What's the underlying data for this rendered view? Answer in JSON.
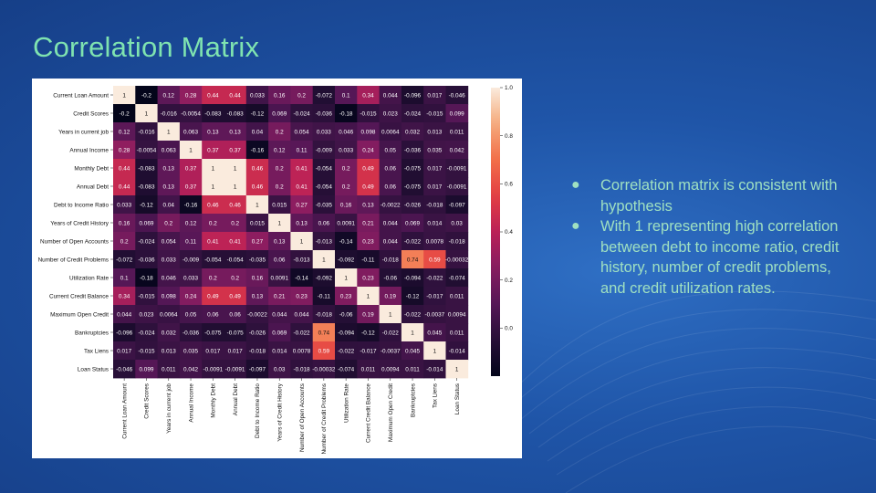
{
  "slide": {
    "title": "Correlation Matrix",
    "bullets": [
      "Correlation matrix is consistent with hypothesis",
      "With 1 representing high correlation between debt to income ratio, credit history, number of credit problems, and credit utilization rates."
    ],
    "bullet_icon": "bullet-dot",
    "title_color": "#7fe3b0",
    "text_color": "#9fe0c1",
    "background_color": "#1f55a8"
  },
  "chart_data": {
    "type": "heatmap",
    "title": "",
    "xlabel": "",
    "ylabel": "",
    "variables": [
      "Current Loan Amount",
      "Credit Scores",
      "Years in current job",
      "Annual Income",
      "Monthly Debt",
      "Annual Debt",
      "Debt to Income Ratio",
      "Years of Credit History",
      "Number of Open Accounts",
      "Number of Credit Problems",
      "Utilization Rate",
      "Current Credit Balance",
      "Maximum Open Credit",
      "Bankruptcies",
      "Tax Liens",
      "Loan Status"
    ],
    "matrix": [
      [
        1,
        -0.2,
        0.12,
        0.28,
        0.44,
        0.44,
        0.033,
        0.16,
        0.2,
        -0.072,
        0.1,
        0.34,
        0.044,
        -0.096,
        0.017,
        -0.046
      ],
      [
        -0.2,
        1,
        -0.016,
        -0.0054,
        -0.083,
        -0.083,
        -0.12,
        0.069,
        -0.024,
        -0.036,
        -0.18,
        -0.015,
        0.023,
        -0.024,
        -0.015,
        0.099
      ],
      [
        0.12,
        -0.016,
        1,
        0.063,
        0.13,
        0.13,
        0.04,
        0.2,
        0.054,
        0.033,
        0.046,
        0.098,
        0.0064,
        0.032,
        0.013,
        0.011
      ],
      [
        0.28,
        -0.0054,
        0.063,
        1,
        0.37,
        0.37,
        -0.16,
        0.12,
        0.11,
        -0.009,
        0.033,
        0.24,
        0.05,
        -0.036,
        0.035,
        0.042
      ],
      [
        0.44,
        -0.083,
        0.13,
        0.37,
        1,
        1,
        0.46,
        0.2,
        0.41,
        -0.054,
        0.2,
        0.49,
        0.06,
        -0.075,
        0.017,
        -0.0091
      ],
      [
        0.44,
        -0.083,
        0.13,
        0.37,
        1,
        1,
        0.46,
        0.2,
        0.41,
        -0.054,
        0.2,
        0.49,
        0.06,
        -0.075,
        0.017,
        -0.0091
      ],
      [
        0.033,
        -0.12,
        0.04,
        -0.16,
        0.46,
        0.46,
        1,
        0.015,
        0.27,
        -0.035,
        0.16,
        0.13,
        -0.0022,
        -0.026,
        -0.018,
        -0.097
      ],
      [
        0.16,
        0.069,
        0.2,
        0.12,
        0.2,
        0.2,
        0.015,
        1,
        0.13,
        0.06,
        0.0091,
        0.21,
        0.044,
        0.069,
        0.014,
        0.03
      ],
      [
        0.2,
        -0.024,
        0.054,
        0.11,
        0.41,
        0.41,
        0.27,
        0.13,
        1,
        -0.013,
        -0.14,
        0.23,
        0.044,
        -0.022,
        0.0078,
        -0.018
      ],
      [
        -0.072,
        -0.036,
        0.033,
        -0.009,
        -0.054,
        -0.054,
        -0.035,
        0.06,
        -0.013,
        1,
        -0.092,
        -0.11,
        -0.018,
        0.74,
        0.59,
        -0.00032
      ],
      [
        0.1,
        -0.18,
        0.046,
        0.033,
        0.2,
        0.2,
        0.16,
        0.0091,
        -0.14,
        -0.092,
        1,
        0.23,
        -0.06,
        -0.094,
        -0.022,
        -0.074
      ],
      [
        0.34,
        -0.015,
        0.098,
        0.24,
        0.49,
        0.49,
        0.13,
        0.21,
        0.23,
        -0.11,
        0.23,
        1,
        0.19,
        -0.12,
        -0.017,
        0.011
      ],
      [
        0.044,
        0.023,
        0.0064,
        0.05,
        0.06,
        0.06,
        -0.0022,
        0.044,
        0.044,
        -0.018,
        -0.06,
        0.19,
        1,
        -0.022,
        -0.0037,
        0.0094
      ],
      [
        -0.096,
        -0.024,
        0.032,
        -0.036,
        -0.075,
        -0.075,
        -0.026,
        0.069,
        -0.022,
        0.74,
        -0.094,
        -0.12,
        -0.022,
        1,
        0.045,
        0.011
      ],
      [
        0.017,
        -0.015,
        0.013,
        0.035,
        0.017,
        0.017,
        -0.018,
        0.014,
        0.0078,
        0.59,
        -0.022,
        -0.017,
        -0.0037,
        0.045,
        1,
        -0.014
      ],
      [
        -0.046,
        0.099,
        0.011,
        0.042,
        -0.0091,
        -0.0091,
        -0.097,
        0.03,
        -0.018,
        -0.00032,
        -0.074,
        0.011,
        0.0094,
        0.011,
        -0.014,
        1
      ]
    ],
    "labels": [
      [
        "1",
        "-0.2",
        "0.12",
        "0.28",
        "0.44",
        "0.44",
        "0.033",
        "0.16",
        "0.2",
        "-0.072",
        "0.1",
        "0.34",
        "0.044",
        "-0.096",
        "0.017",
        "-0.046"
      ],
      [
        "-0.2",
        "1",
        "-0.016",
        "-0.0054",
        "-0.083",
        "-0.083",
        "-0.12",
        "0.069",
        "-0.024",
        "-0.036",
        "-0.18",
        "-0.015",
        "0.023",
        "-0.024",
        "-0.015",
        "0.099"
      ],
      [
        "0.12",
        "-0.016",
        "1",
        "0.063",
        "0.13",
        "0.13",
        "0.04",
        "0.2",
        "0.054",
        "0.033",
        "0.046",
        "0.098",
        "0.0064",
        "0.032",
        "0.013",
        "0.011"
      ],
      [
        "0.28",
        "-0.0054",
        "0.063",
        "1",
        "0.37",
        "0.37",
        "-0.16",
        "0.12",
        "0.11",
        "-0.009",
        "0.033",
        "0.24",
        "0.05",
        "-0.036",
        "0.035",
        "0.042"
      ],
      [
        "0.44",
        "-0.083",
        "0.13",
        "0.37",
        "1",
        "1",
        "0.46",
        "0.2",
        "0.41",
        "-0.054",
        "0.2",
        "0.49",
        "0.06",
        "-0.075",
        "0.017",
        "-0.0091"
      ],
      [
        "0.44",
        "-0.083",
        "0.13",
        "0.37",
        "1",
        "1",
        "0.46",
        "0.2",
        "0.41",
        "-0.054",
        "0.2",
        "0.49",
        "0.06",
        "-0.075",
        "0.017",
        "-0.0091"
      ],
      [
        "0.033",
        "-0.12",
        "0.04",
        "-0.16",
        "0.46",
        "0.46",
        "1",
        "0.015",
        "0.27",
        "-0.035",
        "0.16",
        "0.13",
        "-0.0022",
        "-0.026",
        "-0.018",
        "-0.097"
      ],
      [
        "0.16",
        "0.069",
        "0.2",
        "0.12",
        "0.2",
        "0.2",
        "0.015",
        "1",
        "0.13",
        "0.06",
        "0.0091",
        "0.21",
        "0.044",
        "0.069",
        "0.014",
        "0.03"
      ],
      [
        "0.2",
        "-0.024",
        "0.054",
        "0.11",
        "0.41",
        "0.41",
        "0.27",
        "0.13",
        "1",
        "-0.013",
        "-0.14",
        "0.23",
        "0.044",
        "-0.022",
        "0.0078",
        "-0.018"
      ],
      [
        "-0.072",
        "-0.036",
        "0.033",
        "-0.009",
        "-0.054",
        "-0.054",
        "-0.035",
        "0.06",
        "-0.013",
        "1",
        "-0.092",
        "-0.11",
        "-0.018",
        "0.74",
        "0.59",
        "-0.00032"
      ],
      [
        "0.1",
        "-0.18",
        "0.046",
        "0.033",
        "0.2",
        "0.2",
        "0.16",
        "0.0091",
        "-0.14",
        "-0.092",
        "1",
        "0.23",
        "-0.06",
        "-0.094",
        "-0.022",
        "-0.074"
      ],
      [
        "0.34",
        "-0.015",
        "0.098",
        "0.24",
        "0.49",
        "0.49",
        "0.13",
        "0.21",
        "0.23",
        "-0.11",
        "0.23",
        "1",
        "0.19",
        "-0.12",
        "-0.017",
        "0.011"
      ],
      [
        "0.044",
        "0.023",
        "0.0064",
        "0.05",
        "0.06",
        "0.06",
        "-0.0022",
        "0.044",
        "0.044",
        "-0.018",
        "-0.06",
        "0.19",
        "1",
        "-0.022",
        "-0.0037",
        "0.0094"
      ],
      [
        "-0.096",
        "-0.024",
        "0.032",
        "-0.036",
        "-0.075",
        "-0.075",
        "-0.026",
        "0.069",
        "-0.022",
        "0.74",
        "-0.094",
        "-0.12",
        "-0.022",
        "1",
        "0.045",
        "0.011"
      ],
      [
        "0.017",
        "-0.015",
        "0.013",
        "0.035",
        "0.017",
        "0.017",
        "-0.018",
        "0.014",
        "0.0078",
        "0.59",
        "-0.022",
        "-0.017",
        "-0.0037",
        "0.045",
        "1",
        "-0.014"
      ],
      [
        "-0.046",
        "0.099",
        "0.011",
        "0.042",
        "-0.0091",
        "-0.0091",
        "-0.097",
        "0.03",
        "-0.018",
        "-0.00032",
        "-0.074",
        "0.011",
        "0.0094",
        "0.011",
        "-0.014",
        "1"
      ]
    ],
    "colormap": "rocket",
    "vmin": -0.2,
    "vmax": 1.0,
    "colorbar_ticks": [
      0.0,
      0.2,
      0.4,
      0.6,
      0.8,
      1.0
    ],
    "colorbar_tick_labels": [
      "0.0",
      "0.2",
      "0.4",
      "0.6",
      "0.8",
      "1.0"
    ],
    "grid": false
  }
}
